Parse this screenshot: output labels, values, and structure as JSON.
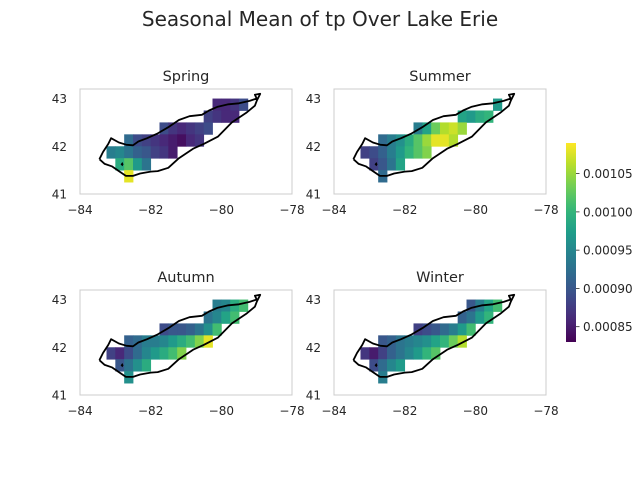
{
  "chart_data": {
    "type": "heatmap",
    "title": "Seasonal Mean of tp Over Lake Erie",
    "colorbar": {
      "colormap": "viridis",
      "vmin": 0.00083,
      "vmax": 0.00109,
      "ticks": [
        0.00085,
        0.0009,
        0.00095,
        0.001,
        0.00105
      ],
      "tick_labels": [
        "0.00085",
        "0.00090",
        "0.00095",
        "0.00100",
        "0.00105"
      ]
    },
    "xlim": [
      -84,
      -78
    ],
    "ylim": [
      41,
      43.2
    ],
    "xticks": [
      -84,
      -82,
      -80,
      -78
    ],
    "xtick_labels": [
      "−84",
      "−82",
      "−80",
      "−78"
    ],
    "yticks": [
      41,
      42,
      43
    ],
    "ytick_labels": [
      "41",
      "42",
      "43"
    ],
    "grid_resolution": 0.25,
    "panels": [
      {
        "title": "Spring",
        "cells": [
          [
            -80.125,
            42.875,
            0.00086
          ],
          [
            -79.875,
            42.875,
            0.00086
          ],
          [
            -79.625,
            42.875,
            0.00087
          ],
          [
            -79.375,
            42.875,
            0.00089
          ],
          [
            -80.375,
            42.625,
            0.00088
          ],
          [
            -80.125,
            42.625,
            0.00087
          ],
          [
            -79.875,
            42.625,
            0.00086
          ],
          [
            -79.625,
            42.625,
            0.00086
          ],
          [
            -81.625,
            42.375,
            0.00089
          ],
          [
            -81.375,
            42.375,
            0.00087
          ],
          [
            -81.125,
            42.375,
            0.00086
          ],
          [
            -80.875,
            42.375,
            0.00087
          ],
          [
            -80.625,
            42.375,
            0.00088
          ],
          [
            -80.375,
            42.375,
            0.00089
          ],
          [
            -82.625,
            42.125,
            0.00092
          ],
          [
            -82.375,
            42.125,
            0.00089
          ],
          [
            -82.125,
            42.125,
            0.00088
          ],
          [
            -81.875,
            42.125,
            0.00087
          ],
          [
            -81.625,
            42.125,
            0.00086
          ],
          [
            -81.375,
            42.125,
            0.00085
          ],
          [
            -81.125,
            42.125,
            0.00084
          ],
          [
            -80.875,
            42.125,
            0.00086
          ],
          [
            -80.625,
            42.125,
            0.00087
          ],
          [
            -83.125,
            41.875,
            0.00094
          ],
          [
            -82.875,
            41.875,
            0.00095
          ],
          [
            -82.625,
            41.875,
            0.00093
          ],
          [
            -82.375,
            41.875,
            0.00091
          ],
          [
            -82.125,
            41.875,
            0.0009
          ],
          [
            -81.875,
            41.875,
            0.00088
          ],
          [
            -81.625,
            41.875,
            0.00087
          ],
          [
            -81.375,
            41.875,
            0.00085
          ],
          [
            -82.875,
            41.625,
            0.00099
          ],
          [
            -82.625,
            41.625,
            0.00102
          ],
          [
            -82.375,
            41.625,
            0.00097
          ],
          [
            -82.125,
            41.625,
            0.00093
          ],
          [
            -82.625,
            41.375,
            0.00108
          ]
        ]
      },
      {
        "title": "Summer",
        "cells": [
          [
            -79.375,
            42.875,
            0.00097
          ],
          [
            -80.375,
            42.625,
            0.00098
          ],
          [
            -80.125,
            42.625,
            0.00097
          ],
          [
            -79.875,
            42.625,
            0.00099
          ],
          [
            -79.625,
            42.625,
            0.001
          ],
          [
            -81.625,
            42.375,
            0.00094
          ],
          [
            -81.375,
            42.375,
            0.00098
          ],
          [
            -81.125,
            42.375,
            0.00103
          ],
          [
            -80.875,
            42.375,
            0.00106
          ],
          [
            -80.625,
            42.375,
            0.00107
          ],
          [
            -80.375,
            42.375,
            0.00105
          ],
          [
            -82.625,
            42.125,
            0.00092
          ],
          [
            -82.375,
            42.125,
            0.00094
          ],
          [
            -82.125,
            42.125,
            0.00096
          ],
          [
            -81.875,
            42.125,
            0.00099
          ],
          [
            -81.625,
            42.125,
            0.00102
          ],
          [
            -81.375,
            42.125,
            0.00105
          ],
          [
            -81.125,
            42.125,
            0.00108
          ],
          [
            -80.875,
            42.125,
            0.00108
          ],
          [
            -80.625,
            42.125,
            0.00106
          ],
          [
            -83.125,
            41.875,
            0.00088
          ],
          [
            -82.875,
            41.875,
            0.00089
          ],
          [
            -82.625,
            41.875,
            0.00091
          ],
          [
            -82.375,
            41.875,
            0.00094
          ],
          [
            -82.125,
            41.875,
            0.00097
          ],
          [
            -81.875,
            41.875,
            0.001
          ],
          [
            -81.625,
            41.875,
            0.00102
          ],
          [
            -81.375,
            41.875,
            0.00104
          ],
          [
            -82.875,
            41.625,
            0.00088
          ],
          [
            -82.625,
            41.625,
            0.0009
          ],
          [
            -82.375,
            41.625,
            0.00093
          ],
          [
            -82.125,
            41.625,
            0.00098
          ],
          [
            -82.625,
            41.375,
            0.00092
          ]
        ]
      },
      {
        "title": "Autumn",
        "cells": [
          [
            -80.125,
            42.875,
            0.00094
          ],
          [
            -79.875,
            42.875,
            0.00095
          ],
          [
            -79.625,
            42.875,
            0.00099
          ],
          [
            -79.375,
            42.875,
            0.00101
          ],
          [
            -80.375,
            42.625,
            0.00093
          ],
          [
            -80.125,
            42.625,
            0.00095
          ],
          [
            -79.875,
            42.625,
            0.00098
          ],
          [
            -79.625,
            42.625,
            0.00101
          ],
          [
            -81.625,
            42.375,
            0.00089
          ],
          [
            -81.375,
            42.375,
            0.0009
          ],
          [
            -81.125,
            42.375,
            0.0009
          ],
          [
            -80.875,
            42.375,
            0.00091
          ],
          [
            -80.625,
            42.375,
            0.00093
          ],
          [
            -80.375,
            42.375,
            0.00096
          ],
          [
            -80.125,
            42.375,
            0.00101
          ],
          [
            -82.625,
            42.125,
            0.00091
          ],
          [
            -82.375,
            42.125,
            0.00092
          ],
          [
            -82.125,
            42.125,
            0.00094
          ],
          [
            -81.875,
            42.125,
            0.00094
          ],
          [
            -81.625,
            42.125,
            0.00095
          ],
          [
            -81.375,
            42.125,
            0.00097
          ],
          [
            -81.125,
            42.125,
            0.00099
          ],
          [
            -80.875,
            42.125,
            0.00101
          ],
          [
            -80.625,
            42.125,
            0.00104
          ],
          [
            -80.375,
            42.125,
            0.00108
          ],
          [
            -83.125,
            41.875,
            0.00088
          ],
          [
            -82.875,
            41.875,
            0.00086
          ],
          [
            -82.625,
            41.875,
            0.00089
          ],
          [
            -82.375,
            41.875,
            0.00092
          ],
          [
            -82.125,
            41.875,
            0.00095
          ],
          [
            -81.875,
            41.875,
            0.00097
          ],
          [
            -81.625,
            41.875,
            0.00099
          ],
          [
            -81.375,
            41.875,
            0.00101
          ],
          [
            -81.125,
            41.875,
            0.00104
          ],
          [
            -82.875,
            41.625,
            0.0009
          ],
          [
            -82.625,
            41.625,
            0.00093
          ],
          [
            -82.375,
            41.625,
            0.00096
          ],
          [
            -82.125,
            41.625,
            0.00099
          ],
          [
            -82.625,
            41.375,
            0.00096
          ]
        ]
      },
      {
        "title": "Winter",
        "cells": [
          [
            -80.125,
            42.875,
            0.0009
          ],
          [
            -79.875,
            42.875,
            0.00094
          ],
          [
            -79.625,
            42.875,
            0.00098
          ],
          [
            -79.375,
            42.875,
            0.00101
          ],
          [
            -80.375,
            42.625,
            0.00091
          ],
          [
            -80.125,
            42.625,
            0.00093
          ],
          [
            -79.875,
            42.625,
            0.00097
          ],
          [
            -79.625,
            42.625,
            0.001
          ],
          [
            -81.625,
            42.375,
            0.00088
          ],
          [
            -81.375,
            42.375,
            0.00089
          ],
          [
            -81.125,
            42.375,
            0.0009
          ],
          [
            -80.875,
            42.375,
            0.00092
          ],
          [
            -80.625,
            42.375,
            0.00094
          ],
          [
            -80.375,
            42.375,
            0.00097
          ],
          [
            -80.125,
            42.375,
            0.00101
          ],
          [
            -82.625,
            42.125,
            0.0009
          ],
          [
            -82.375,
            42.125,
            0.00091
          ],
          [
            -82.125,
            42.125,
            0.00093
          ],
          [
            -81.875,
            42.125,
            0.00094
          ],
          [
            -81.625,
            42.125,
            0.00095
          ],
          [
            -81.375,
            42.125,
            0.00096
          ],
          [
            -81.125,
            42.125,
            0.00098
          ],
          [
            -80.875,
            42.125,
            0.001
          ],
          [
            -80.625,
            42.125,
            0.00103
          ],
          [
            -80.375,
            42.125,
            0.00106
          ],
          [
            -83.125,
            41.875,
            0.00087
          ],
          [
            -82.875,
            41.875,
            0.00085
          ],
          [
            -82.625,
            41.875,
            0.00088
          ],
          [
            -82.375,
            41.875,
            0.00091
          ],
          [
            -82.125,
            41.875,
            0.00093
          ],
          [
            -81.875,
            41.875,
            0.00095
          ],
          [
            -81.625,
            41.875,
            0.00097
          ],
          [
            -81.375,
            41.875,
            0.001
          ],
          [
            -81.125,
            41.875,
            0.00102
          ],
          [
            -82.875,
            41.625,
            0.00089
          ],
          [
            -82.625,
            41.625,
            0.00092
          ],
          [
            -82.375,
            41.625,
            0.00095
          ],
          [
            -82.125,
            41.625,
            0.00097
          ],
          [
            -82.625,
            41.375,
            0.00094
          ]
        ]
      }
    ]
  }
}
